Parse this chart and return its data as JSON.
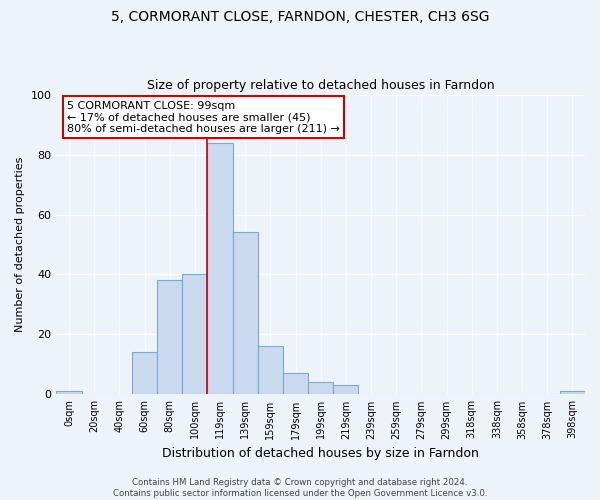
{
  "title": "5, CORMORANT CLOSE, FARNDON, CHESTER, CH3 6SG",
  "subtitle": "Size of property relative to detached houses in Farndon",
  "xlabel": "Distribution of detached houses by size in Farndon",
  "ylabel": "Number of detached properties",
  "bar_labels": [
    "0sqm",
    "20sqm",
    "40sqm",
    "60sqm",
    "80sqm",
    "100sqm",
    "119sqm",
    "139sqm",
    "159sqm",
    "179sqm",
    "199sqm",
    "219sqm",
    "239sqm",
    "259sqm",
    "279sqm",
    "299sqm",
    "318sqm",
    "338sqm",
    "358sqm",
    "378sqm",
    "398sqm"
  ],
  "bar_values": [
    1,
    0,
    0,
    14,
    38,
    40,
    84,
    54,
    16,
    7,
    4,
    3,
    0,
    0,
    0,
    0,
    0,
    0,
    0,
    0,
    1
  ],
  "bar_fill_color": "#c9d9ee",
  "bar_edge_color": "#7aaad0",
  "vline_color": "#cc0000",
  "vline_x_index": 5,
  "ylim": [
    0,
    100
  ],
  "yticks": [
    0,
    20,
    40,
    60,
    80,
    100
  ],
  "annotation_text_line1": "5 CORMORANT CLOSE: 99sqm",
  "annotation_text_line2": "← 17% of detached houses are smaller (45)",
  "annotation_text_line3": "80% of semi-detached houses are larger (211) →",
  "footer_line1": "Contains HM Land Registry data © Crown copyright and database right 2024.",
  "footer_line2": "Contains public sector information licensed under the Open Government Licence v3.0.",
  "bg_color": "#eef2f9",
  "plot_bg_color": "#eef2f9",
  "title_fontsize": 10,
  "subtitle_fontsize": 9
}
